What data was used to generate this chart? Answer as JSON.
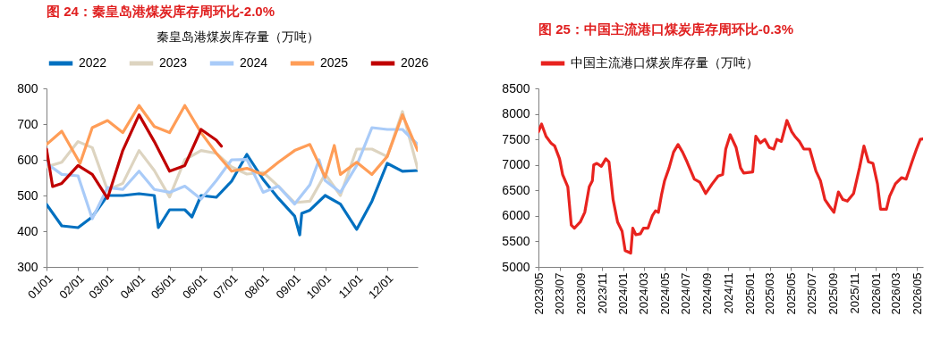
{
  "chart_data": [
    {
      "type": "line",
      "title": "图 24：秦皇岛港煤炭库存周环比-2.0%",
      "legend_title": "秦皇岛港煤炭库存量（万吨）",
      "legend": "top",
      "xlim": [
        "--01-01",
        "--12-31"
      ],
      "xticks": [
        {
          "value": "--01-01",
          "label": "01/01"
        },
        {
          "value": "--02-01",
          "label": "02/01"
        },
        {
          "value": "--03-01",
          "label": "03/01"
        },
        {
          "value": "--04-01",
          "label": "04/01"
        },
        {
          "value": "--05-01",
          "label": "05/01"
        },
        {
          "value": "--06-01",
          "label": "06/01"
        },
        {
          "value": "--07-01",
          "label": "07/01"
        },
        {
          "value": "--08-01",
          "label": "08/01"
        },
        {
          "value": "--09-01",
          "label": "09/01"
        },
        {
          "value": "--10-01",
          "label": "10/01"
        },
        {
          "value": "--11-01",
          "label": "11/01"
        },
        {
          "value": "--12-01",
          "label": "12/01"
        }
      ],
      "ylim": [
        300,
        800
      ],
      "yticks": [
        300,
        400,
        500,
        600,
        700,
        800
      ],
      "series": [
        {
          "name": "2022",
          "color": "#0070c0",
          "x": [
            "--01-01",
            "--01-16",
            "--02-01",
            "--02-15",
            "--03-01",
            "--03-16",
            "--04-01",
            "--04-16",
            "--04-20",
            "--05-01",
            "--05-16",
            "--05-23",
            "--06-01",
            "--06-16",
            "--07-01",
            "--07-16",
            "--08-01",
            "--08-16",
            "--09-01",
            "--09-06",
            "--09-08",
            "--09-16",
            "--10-01",
            "--10-16",
            "--11-01",
            "--11-16",
            "--12-01",
            "--12-16",
            "--12-31"
          ],
          "values": [
            475,
            415,
            410,
            440,
            500,
            500,
            505,
            500,
            410,
            460,
            460,
            440,
            500,
            495,
            540,
            615,
            545,
            492,
            442,
            390,
            450,
            459,
            500,
            476,
            405,
            484,
            590,
            568,
            570
          ]
        },
        {
          "name": "2023",
          "color": "#ddd4c0",
          "x": [
            "--01-01",
            "--01-16",
            "--02-01",
            "--02-15",
            "--03-01",
            "--03-16",
            "--04-01",
            "--04-16",
            "--05-01",
            "--05-16",
            "--06-01",
            "--06-16",
            "--07-01",
            "--07-16",
            "--08-01",
            "--08-16",
            "--09-01",
            "--09-16",
            "--10-01",
            "--10-16",
            "--11-01",
            "--11-16",
            "--12-01",
            "--12-16",
            "--12-31"
          ],
          "values": [
            580,
            593,
            651,
            634,
            515,
            534,
            626,
            570,
            496,
            600,
            626,
            618,
            580,
            560,
            565,
            526,
            480,
            484,
            560,
            500,
            630,
            630,
            609,
            735,
            575
          ]
        },
        {
          "name": "2024",
          "color": "#a9cbf8",
          "x": [
            "--01-01",
            "--01-16",
            "--02-01",
            "--02-15",
            "--03-01",
            "--03-16",
            "--04-01",
            "--04-16",
            "--05-01",
            "--05-16",
            "--06-01",
            "--06-16",
            "--07-01",
            "--07-16",
            "--08-01",
            "--08-16",
            "--09-01",
            "--09-16",
            "--09-25",
            "--10-01",
            "--10-16",
            "--11-01",
            "--11-16",
            "--12-01",
            "--12-16",
            "--12-31"
          ],
          "values": [
            590,
            559,
            555,
            435,
            522,
            517,
            568,
            517,
            509,
            526,
            490,
            542,
            600,
            601,
            509,
            526,
            476,
            530,
            600,
            542,
            509,
            584,
            690,
            685,
            685,
            643
          ]
        },
        {
          "name": "2025",
          "color": "#ff9d57",
          "x": [
            "--01-01",
            "--01-16",
            "--02-01",
            "--02-03",
            "--02-15",
            "--03-01",
            "--03-16",
            "--04-01",
            "--04-16",
            "--05-01",
            "--05-16",
            "--06-01",
            "--06-16",
            "--07-01",
            "--07-16",
            "--08-01",
            "--08-16",
            "--09-01",
            "--09-16",
            "--10-01",
            "--10-10",
            "--10-16",
            "--11-01",
            "--11-16",
            "--12-01",
            "--12-16",
            "--12-31"
          ],
          "values": [
            643,
            680,
            600,
            590,
            690,
            710,
            676,
            752,
            693,
            676,
            752,
            676,
            618,
            568,
            576,
            559,
            593,
            626,
            643,
            551,
            640,
            559,
            593,
            559,
            609,
            726,
            626
          ]
        },
        {
          "name": "2026",
          "color": "#c00000",
          "x": [
            "--01-01",
            "--01-07",
            "--01-16",
            "--02-01",
            "--02-15",
            "--03-01",
            "--03-16",
            "--04-01",
            "--04-16",
            "--05-01",
            "--05-16",
            "--06-01",
            "--06-16",
            "--06-21"
          ],
          "values": [
            630,
            525,
            534,
            584,
            559,
            492,
            626,
            726,
            651,
            568,
            584,
            685,
            655,
            638
          ]
        }
      ]
    },
    {
      "type": "line",
      "title": "图 25：中国主流港口煤炭库存周环比-0.3%",
      "legend": "top",
      "x": [
        "2023-05-01",
        "2023-05-10",
        "2023-05-23",
        "2023-06-06",
        "2023-06-17",
        "2023-07-01",
        "2023-07-10",
        "2023-07-25",
        "2023-08-04",
        "2023-08-13",
        "2023-08-30",
        "2023-09-12",
        "2023-09-25",
        "2023-10-04",
        "2023-10-08",
        "2023-10-17",
        "2023-10-30",
        "2023-11-12",
        "2023-11-21",
        "2023-12-03",
        "2023-12-16",
        "2023-12-29",
        "2024-01-07",
        "2024-01-23",
        "2024-01-29",
        "2024-02-07",
        "2024-02-20",
        "2024-02-29",
        "2024-03-13",
        "2024-03-26",
        "2024-04-04",
        "2024-04-12",
        "2024-04-21",
        "2024-04-30",
        "2024-05-13",
        "2024-05-26",
        "2024-06-08",
        "2024-06-21",
        "2024-07-04",
        "2024-07-25",
        "2024-08-10",
        "2024-08-27",
        "2024-09-15",
        "2024-10-02",
        "2024-10-15",
        "2024-10-24",
        "2024-11-06",
        "2024-11-23",
        "2024-12-06",
        "2024-12-15",
        "2025-01-10",
        "2025-01-19",
        "2025-02-01",
        "2025-02-14",
        "2025-02-27",
        "2025-03-12",
        "2025-03-21",
        "2025-04-03",
        "2025-04-19",
        "2025-05-03",
        "2025-05-12",
        "2025-05-25",
        "2025-06-07",
        "2025-06-24",
        "2025-07-12",
        "2025-07-25",
        "2025-08-07",
        "2025-08-20",
        "2025-09-02",
        "2025-09-15",
        "2025-09-28",
        "2025-10-11",
        "2025-10-29",
        "2025-11-15",
        "2025-11-28",
        "2025-12-11",
        "2025-12-24",
        "2026-01-06",
        "2026-01-15",
        "2026-02-01",
        "2026-02-10",
        "2026-02-27",
        "2026-03-17",
        "2026-03-30",
        "2026-04-16",
        "2026-04-29",
        "2026-05-10",
        "2026-05-18"
      ],
      "xlim": [
        "2023-05-01",
        "2026-05-18"
      ],
      "xticks": [
        {
          "value": "2023-05",
          "label": "2023/05"
        },
        {
          "value": "2023-07",
          "label": "2023/07"
        },
        {
          "value": "2023-09",
          "label": "2023/09"
        },
        {
          "value": "2023-11",
          "label": "2023/11"
        },
        {
          "value": "2024-01",
          "label": "2024/01"
        },
        {
          "value": "2024-03",
          "label": "2024/03"
        },
        {
          "value": "2024-05",
          "label": "2024/05"
        },
        {
          "value": "2024-07",
          "label": "2024/07"
        },
        {
          "value": "2024-09",
          "label": "2024/09"
        },
        {
          "value": "2024-11",
          "label": "2024/11"
        },
        {
          "value": "2025-01",
          "label": "2025/01"
        },
        {
          "value": "2025-03",
          "label": "2025/03"
        },
        {
          "value": "2025-05",
          "label": "2025/05"
        },
        {
          "value": "2025-07",
          "label": "2025/07"
        },
        {
          "value": "2025-09",
          "label": "2025/09"
        },
        {
          "value": "2025-11",
          "label": "2025/11"
        },
        {
          "value": "2026-01",
          "label": "2026/01"
        },
        {
          "value": "2026-03",
          "label": "2026/03"
        },
        {
          "value": "2026-05",
          "label": "2026/05"
        }
      ],
      "ylim": [
        5000,
        8500
      ],
      "yticks": [
        5000,
        5500,
        6000,
        6500,
        7000,
        7500,
        8000,
        8500
      ],
      "series": [
        {
          "name": "中国主流港口煤炭库存量（万吨）",
          "color": "#e8231f",
          "values": [
            7650,
            7800,
            7560,
            7430,
            7370,
            7120,
            6810,
            6570,
            5820,
            5760,
            5880,
            6070,
            6570,
            6690,
            7000,
            7030,
            6970,
            7120,
            7060,
            6320,
            5880,
            5700,
            5320,
            5270,
            5760,
            5630,
            5650,
            5760,
            5760,
            6010,
            6100,
            6070,
            6410,
            6690,
            6940,
            7250,
            7400,
            7250,
            7060,
            6720,
            6660,
            6440,
            6630,
            6780,
            6810,
            7310,
            7590,
            7340,
            6940,
            6840,
            6860,
            7560,
            7430,
            7500,
            7340,
            7310,
            7500,
            7460,
            7870,
            7650,
            7560,
            7460,
            7310,
            7310,
            6880,
            6690,
            6320,
            6190,
            6070,
            6470,
            6320,
            6290,
            6440,
            6940,
            7370,
            7060,
            7030,
            6630,
            6130,
            6130,
            6380,
            6630,
            6750,
            6720,
            7060,
            7310,
            7500,
            7510
          ]
        }
      ]
    }
  ]
}
